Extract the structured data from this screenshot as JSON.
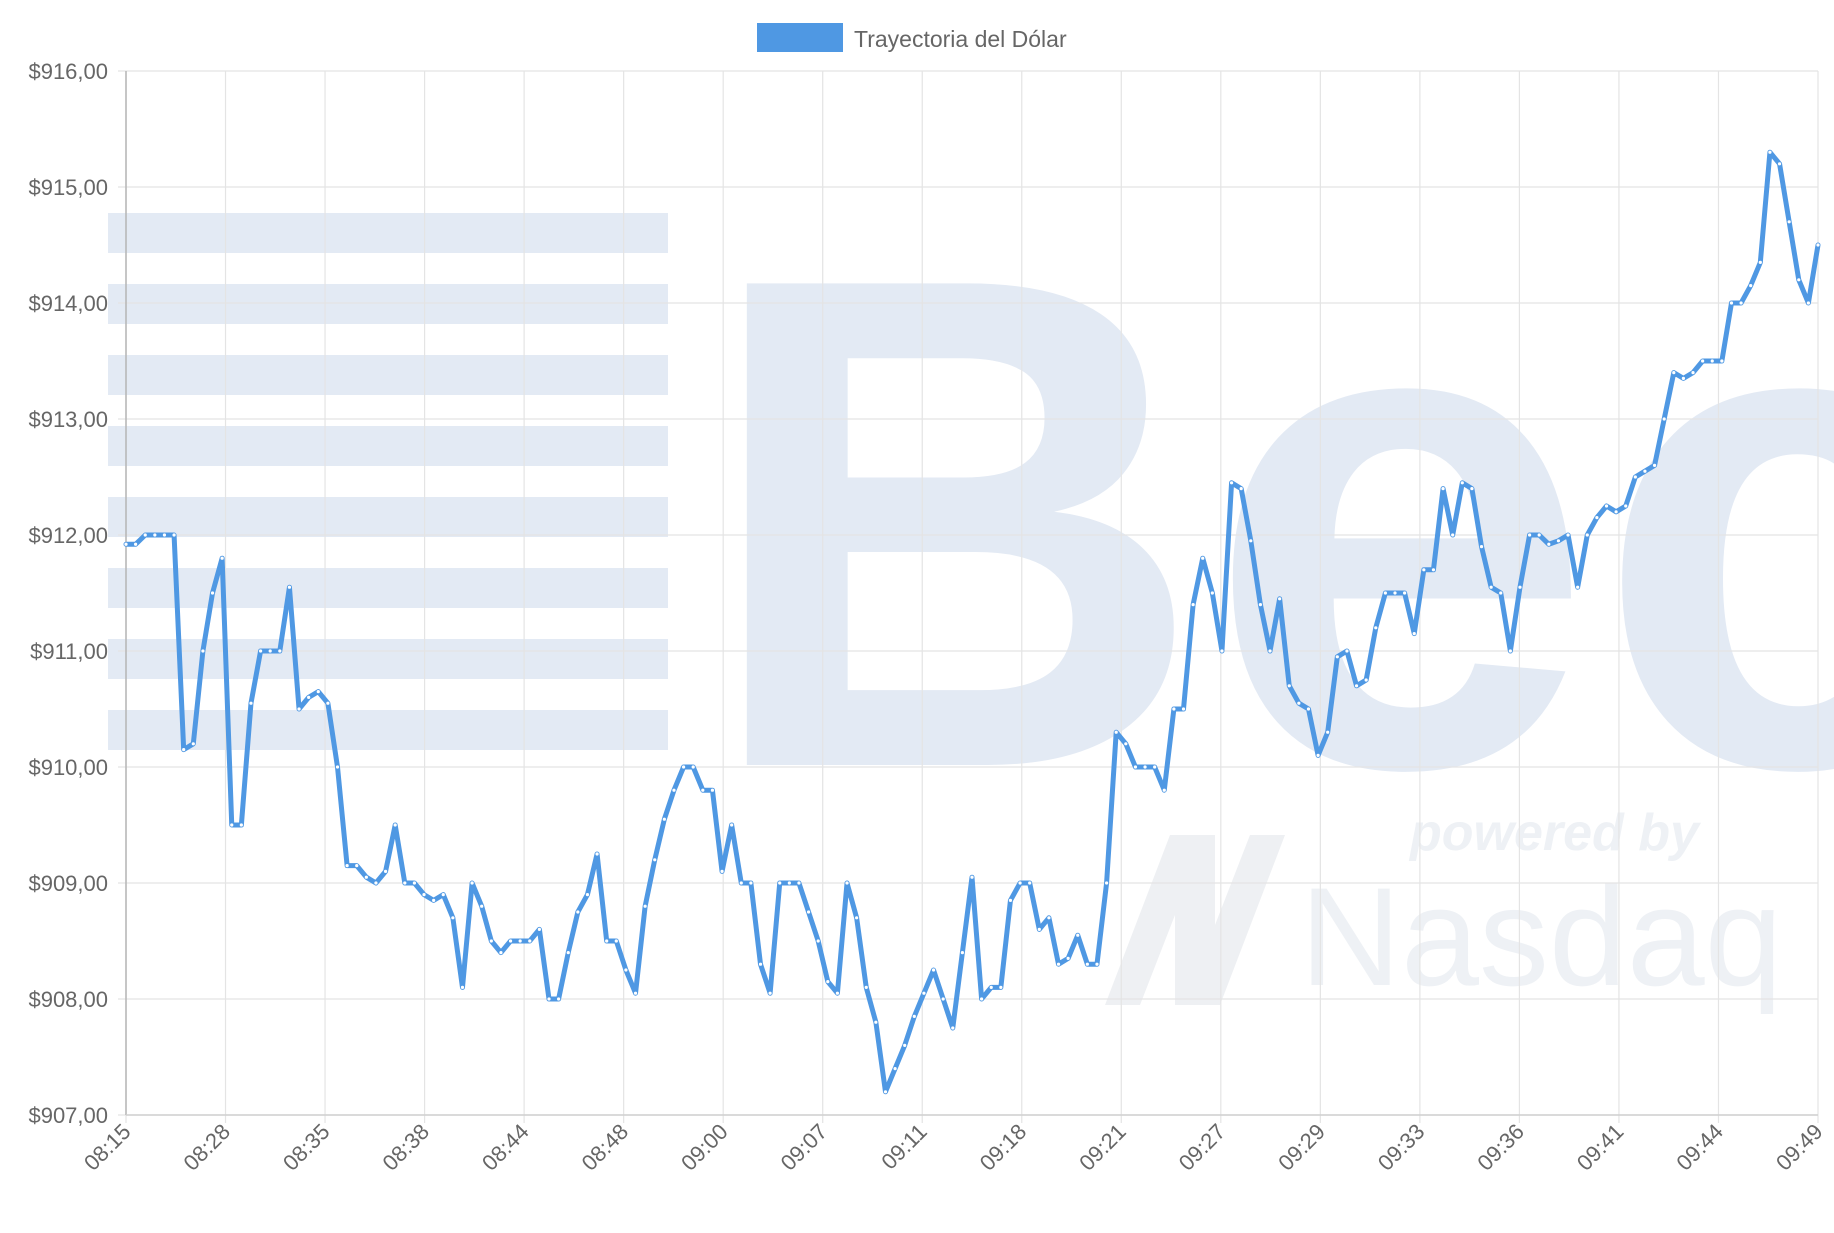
{
  "chart_data": {
    "type": "line",
    "legend": {
      "position": "top-center",
      "label": "Trayectoria del Dólar",
      "color": "#4f98e3"
    },
    "x_tick_labels": [
      "08:15",
      "08:28",
      "08:35",
      "08:38",
      "08:44",
      "08:48",
      "09:00",
      "09:07",
      "09:11",
      "09:18",
      "09:21",
      "09:27",
      "09:29",
      "09:33",
      "09:36",
      "09:41",
      "09:44",
      "09:49"
    ],
    "y_tick_labels": [
      "$907,00",
      "$908,00",
      "$909,00",
      "$910,00",
      "$911,00",
      "$912,00",
      "$913,00",
      "$914,00",
      "$915,00",
      "$916,00"
    ],
    "ylim": [
      907,
      916
    ],
    "grid": true,
    "series": [
      {
        "name": "Trayectoria del Dólar",
        "color": "#4f98e3",
        "values": [
          911.92,
          911.92,
          912.0,
          912.0,
          912.0,
          912.0,
          910.15,
          910.2,
          911.0,
          911.5,
          911.8,
          909.5,
          909.5,
          910.55,
          911.0,
          911.0,
          911.0,
          911.55,
          910.5,
          910.6,
          910.65,
          910.55,
          910.0,
          909.15,
          909.15,
          909.05,
          909.0,
          909.1,
          909.5,
          909.0,
          909.0,
          908.9,
          908.85,
          908.9,
          908.7,
          908.1,
          909.0,
          908.8,
          908.5,
          908.4,
          908.5,
          908.5,
          908.5,
          908.6,
          908.0,
          908.0,
          908.4,
          908.75,
          908.9,
          909.25,
          908.5,
          908.5,
          908.25,
          908.05,
          908.8,
          909.2,
          909.55,
          909.8,
          910.0,
          910.0,
          909.8,
          909.8,
          909.1,
          909.5,
          909.0,
          909.0,
          908.3,
          908.05,
          909.0,
          909.0,
          909.0,
          908.75,
          908.5,
          908.15,
          908.05,
          909.0,
          908.7,
          908.1,
          907.8,
          907.2,
          907.4,
          907.6,
          907.85,
          908.05,
          908.25,
          908.0,
          907.75,
          908.4,
          909.05,
          908.0,
          908.1,
          908.1,
          908.85,
          909.0,
          909.0,
          908.6,
          908.7,
          908.3,
          908.35,
          908.55,
          908.3,
          908.3,
          909.0,
          910.3,
          910.2,
          910.0,
          910.0,
          910.0,
          909.8,
          910.5,
          910.5,
          911.4,
          911.8,
          911.5,
          911.0,
          912.45,
          912.4,
          911.95,
          911.4,
          911.0,
          911.45,
          910.7,
          910.55,
          910.5,
          910.1,
          910.3,
          910.95,
          911.0,
          910.7,
          910.75,
          911.2,
          911.5,
          911.5,
          911.5,
          911.15,
          911.7,
          911.7,
          912.4,
          912.0,
          912.45,
          912.4,
          911.9,
          911.55,
          911.5,
          911.0,
          911.55,
          912.0,
          912.0,
          911.92,
          911.95,
          912.0,
          911.55,
          912.0,
          912.15,
          912.25,
          912.2,
          912.25,
          912.5,
          912.55,
          912.6,
          913.0,
          913.4,
          913.35,
          913.4,
          913.5,
          913.5,
          913.5,
          914.0,
          914.0,
          914.15,
          914.35,
          915.3,
          915.2,
          914.7,
          914.2,
          914.0,
          914.5
        ]
      }
    ]
  },
  "watermark": {
    "brand_text": "Bec",
    "secondary_text": "powered by",
    "partner_text": "Nasdaq"
  }
}
